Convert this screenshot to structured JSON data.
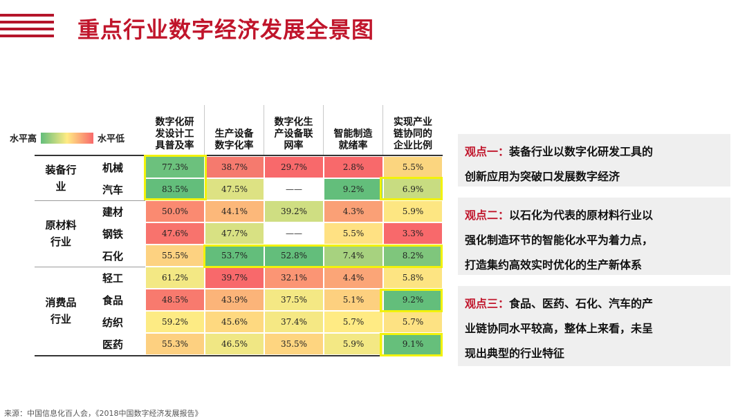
{
  "title": "重点行业数字经济发展全景图",
  "legend": {
    "high": "水平高",
    "low": "水平低"
  },
  "columns": [
    "数字化研发设计工具普及率",
    "生产设备数字化率",
    "数字化生产设备联网率",
    "智能制造就绪率",
    "实现产业链协同的企业比例"
  ],
  "column_lines": [
    [
      "数字化研",
      "发设计工",
      "具普及率"
    ],
    [
      "生产设备",
      "数字化率"
    ],
    [
      "数字化生",
      "产设备联",
      "网率"
    ],
    [
      "智能制造",
      "就绪率"
    ],
    [
      "实现产业",
      "链协同的",
      "企业比例"
    ]
  ],
  "groups": [
    {
      "name_lines": [
        "装备行",
        "业"
      ],
      "rows": 2
    },
    {
      "name_lines": [
        "原材料",
        "行业"
      ],
      "rows": 3
    },
    {
      "name_lines": [
        "消费品",
        "行业"
      ],
      "rows": 4
    }
  ],
  "rows": [
    {
      "label": "机械",
      "values": [
        "77.3%",
        "38.7%",
        "29.7%",
        "2.8%",
        "5.5%"
      ],
      "colors": [
        "#6cc17d",
        "#f57a6e",
        "#f8696b",
        "#f8696b",
        "#fbd57f"
      ]
    },
    {
      "label": "汽车",
      "values": [
        "83.5%",
        "47.5%",
        "——",
        "9.2%",
        "6.9%"
      ],
      "colors": [
        "#63be7b",
        "#dde283",
        "#ffffff",
        "#63be7b",
        "#c8dc81"
      ]
    },
    {
      "label": "建材",
      "values": [
        "50.0%",
        "44.1%",
        "39.2%",
        "4.3%",
        "5.9%"
      ],
      "colors": [
        "#fa8a71",
        "#fcb87a",
        "#cfde82",
        "#faa076",
        "#fde682"
      ]
    },
    {
      "label": "钢铁",
      "values": [
        "47.6%",
        "47.7%",
        "——",
        "5.5%",
        "3.3%"
      ],
      "colors": [
        "#f8736d",
        "#d8e183",
        "#ffffff",
        "#ffe183",
        "#f8696b"
      ]
    },
    {
      "label": "石化",
      "values": [
        "55.5%",
        "53.7%",
        "52.8%",
        "7.4%",
        "8.2%"
      ],
      "colors": [
        "#fdd281",
        "#63be7b",
        "#63be7b",
        "#a7d27f",
        "#7fc67c"
      ]
    },
    {
      "label": "轻工",
      "values": [
        "61.2%",
        "39.7%",
        "32.1%",
        "4.4%",
        "5.8%"
      ],
      "colors": [
        "#f3e884",
        "#f8696b",
        "#fb9574",
        "#fba577",
        "#fde482"
      ]
    },
    {
      "label": "食品",
      "values": [
        "48.5%",
        "43.9%",
        "37.5%",
        "5.1%",
        "9.2%"
      ],
      "colors": [
        "#f87a6e",
        "#fbb479",
        "#f4e884",
        "#fdd07f",
        "#63be7b"
      ]
    },
    {
      "label": "纺织",
      "values": [
        "59.2%",
        "45.6%",
        "37.4%",
        "5.7%",
        "5.7%"
      ],
      "colors": [
        "#fdeb84",
        "#fed980",
        "#f5e884",
        "#ffeb84",
        "#fde283"
      ]
    },
    {
      "label": "医药",
      "values": [
        "55.3%",
        "46.5%",
        "35.5%",
        "5.9%",
        "9.1%"
      ],
      "colors": [
        "#fdd080",
        "#f0e784",
        "#fed580",
        "#f3e884",
        "#66bf7b"
      ]
    }
  ],
  "viewpoints": [
    {
      "label": "观点一：",
      "lines": [
        "装备行业以数字化研发工具的",
        "创新应用为突破口发展数字经济"
      ]
    },
    {
      "label": "观点二：",
      "lines": [
        "以石化为代表的原材料行业以",
        "强化制造环节的智能化水平为着力点，",
        "打造集约高效实时优化的生产新体系"
      ]
    },
    {
      "label": "观点三：",
      "lines": [
        "食品、医药、石化、汽车的产",
        "业链协同水平较高，整体上来看，未呈",
        "现出典型的行业特征"
      ]
    }
  ],
  "source": "来源：中国信息化百人会，《2018中国数字经济发展报告》",
  "colors": {
    "accent": "#c0152b",
    "highlight": "#f2f20a"
  }
}
